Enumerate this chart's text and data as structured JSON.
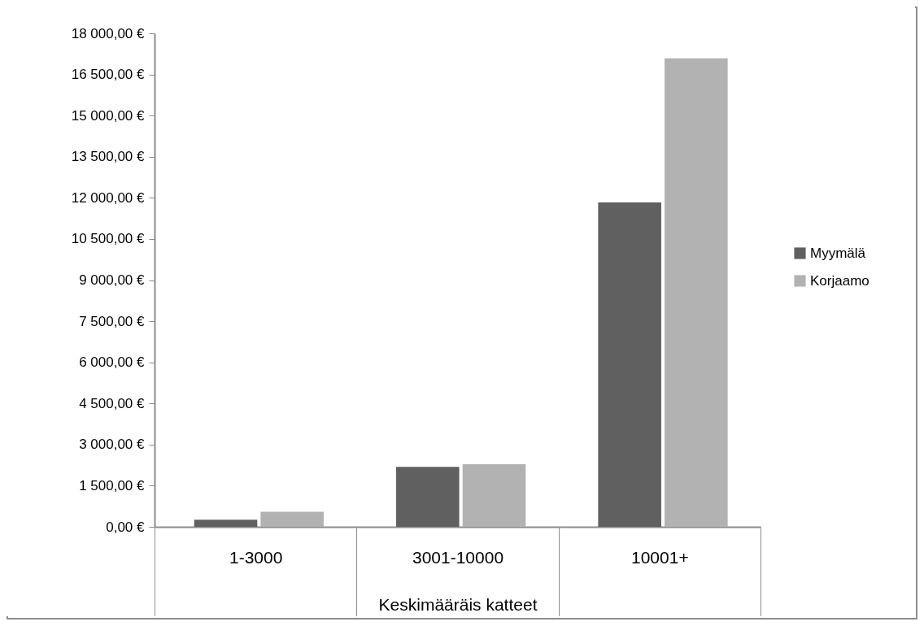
{
  "chart_data": {
    "type": "bar",
    "xlabel": "Keskimääräis katteet",
    "categories": [
      "1-3000",
      "3001-10000",
      "10001+"
    ],
    "series": [
      {
        "name": "Myymälä",
        "color": "#606060",
        "values": [
          260,
          2190,
          11830
        ]
      },
      {
        "name": "Korjaamo",
        "color": "#b2b2b2",
        "values": [
          550,
          2280,
          17090
        ]
      }
    ],
    "ylim": [
      0,
      18000
    ],
    "yticks": [
      {
        "value": 0,
        "label": "0,00 €"
      },
      {
        "value": 1500,
        "label": "1 500,00 €"
      },
      {
        "value": 3000,
        "label": "3 000,00 €"
      },
      {
        "value": 4500,
        "label": "4 500,00 €"
      },
      {
        "value": 6000,
        "label": "6 000,00 €"
      },
      {
        "value": 7500,
        "label": "7 500,00 €"
      },
      {
        "value": 9000,
        "label": "9 000,00 €"
      },
      {
        "value": 10500,
        "label": "10 500,00 €"
      },
      {
        "value": 12000,
        "label": "12 000,00 €"
      },
      {
        "value": 13500,
        "label": "13 500,00 €"
      },
      {
        "value": 15000,
        "label": "15 000,00 €"
      },
      {
        "value": 16500,
        "label": "16 500,00 €"
      },
      {
        "value": 18000,
        "label": "18 000,00 €"
      }
    ],
    "grid": false,
    "legend": "right"
  }
}
